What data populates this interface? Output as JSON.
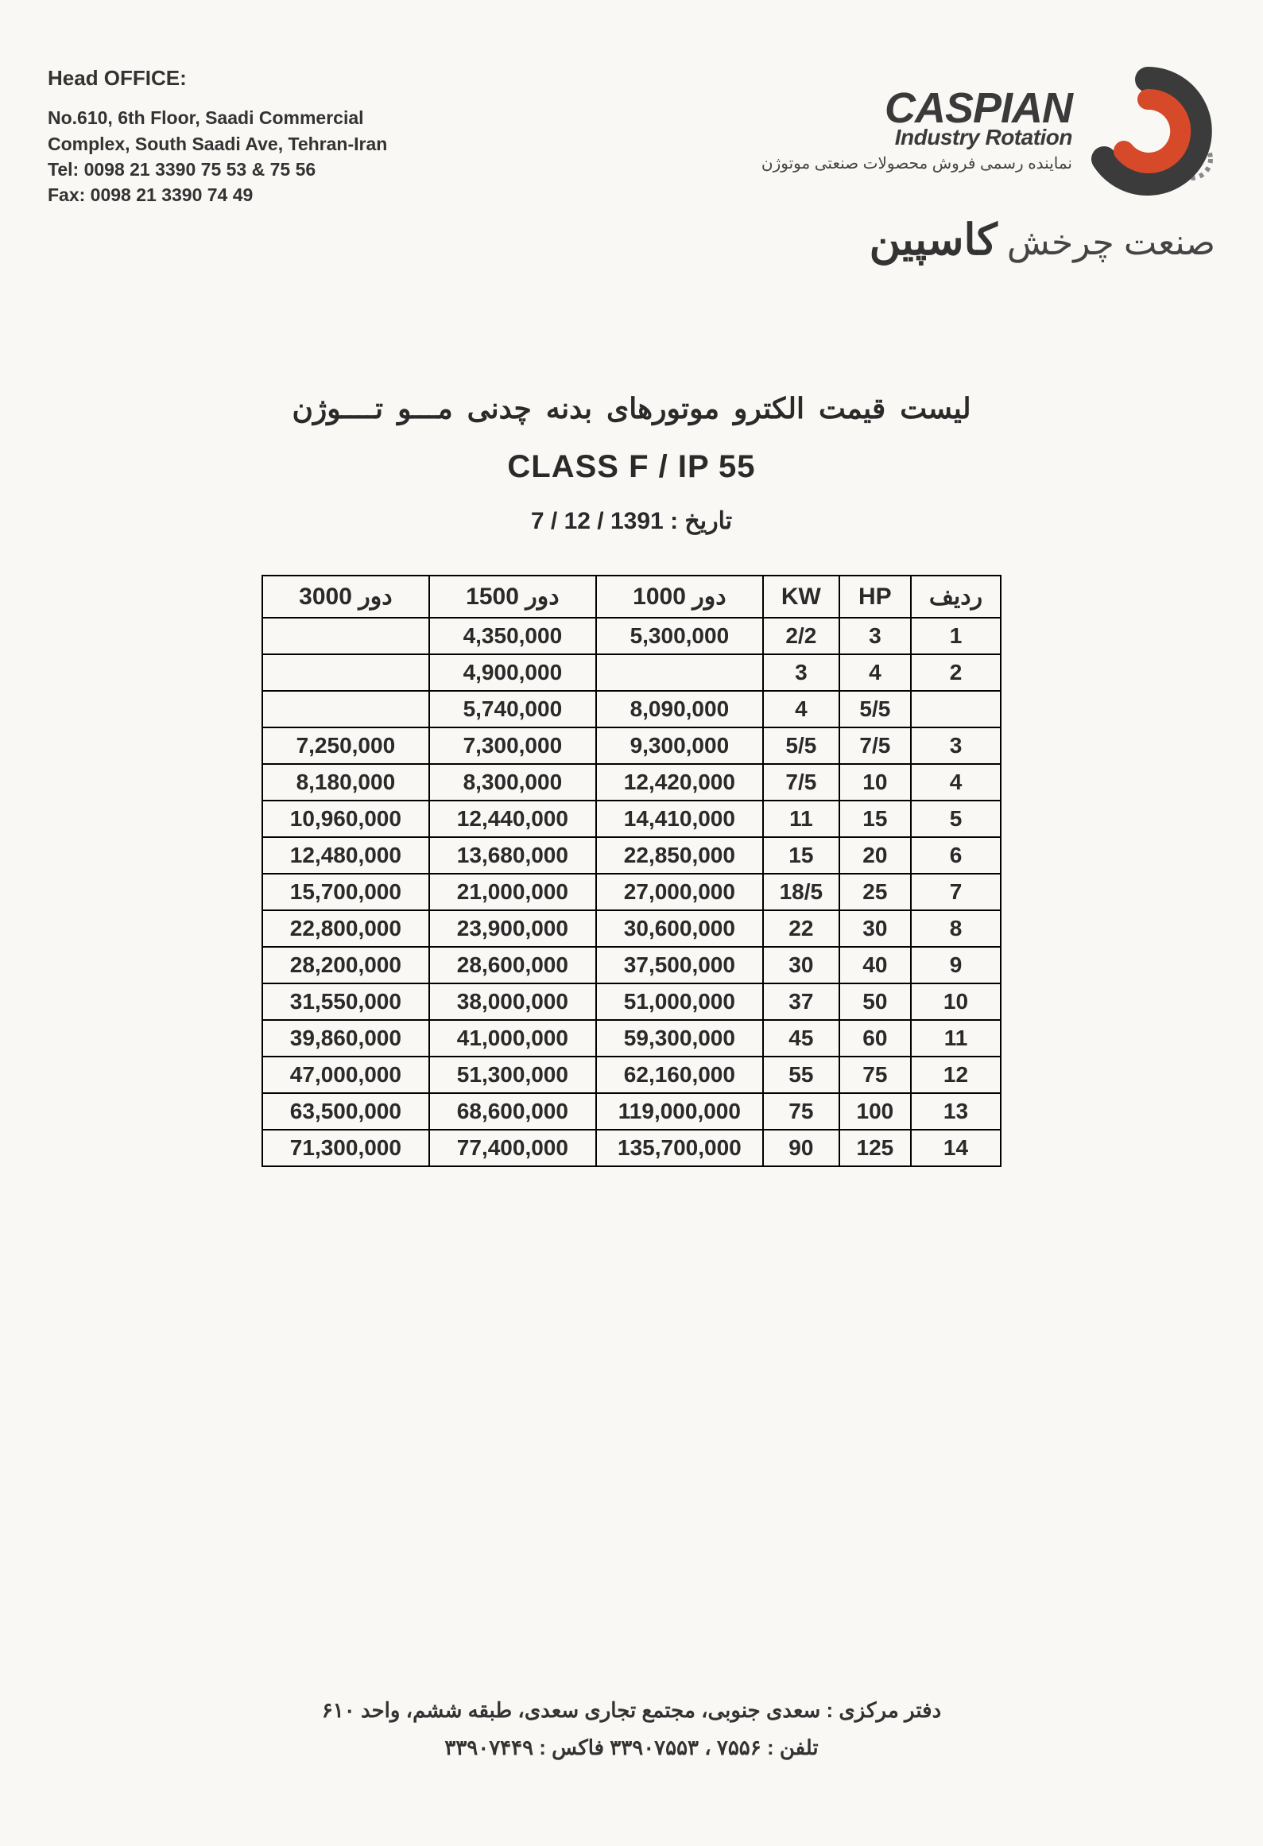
{
  "header": {
    "office_label": "Head OFFICE:",
    "address_line1": "No.610, 6th Floor, Saadi Commercial",
    "address_line2": "Complex, South Saadi Ave, Tehran-Iran",
    "tel": "Tel: 0098 21 3390 75 53 & 75 56",
    "fax": "Fax: 0098 21 3390 74 49"
  },
  "brand": {
    "name_en_main": "CASPIAN",
    "name_en_sub": "Industry Rotation",
    "tagline_fa": "نماینده رسمی فروش محصولات صنعتی موتوژن",
    "name_fa_bold": "کاسپین",
    "name_fa_light": "صنعت چرخش",
    "logo_colors": {
      "outer": "#3b3b3b",
      "inner": "#d64a2a",
      "gear": "#888888"
    }
  },
  "titles": {
    "fa_title": "لیست  قیمت  الکترو موتورهای  بدنه چدنی  مـــو تــــوژن",
    "class_line": "CLASS  F  /  IP 55",
    "date_label": "تاریخ :",
    "date_value": "1391 / 12 / 7"
  },
  "table": {
    "columns": [
      {
        "key": "rpm3000",
        "label": "3000 دور"
      },
      {
        "key": "rpm1500",
        "label": "1500 دور"
      },
      {
        "key": "rpm1000",
        "label": "1000 دور"
      },
      {
        "key": "kw",
        "label": "KW"
      },
      {
        "key": "hp",
        "label": "HP"
      },
      {
        "key": "row",
        "label": "ردیف"
      }
    ],
    "rows": [
      {
        "rpm3000": "",
        "rpm1500": "4,350,000",
        "rpm1000": "5,300,000",
        "kw": "2/2",
        "hp": "3",
        "row": "1"
      },
      {
        "rpm3000": "",
        "rpm1500": "4,900,000",
        "rpm1000": "",
        "kw": "3",
        "hp": "4",
        "row": "2"
      },
      {
        "rpm3000": "",
        "rpm1500": "5,740,000",
        "rpm1000": "8,090,000",
        "kw": "4",
        "hp": "5/5",
        "row": ""
      },
      {
        "rpm3000": "7,250,000",
        "rpm1500": "7,300,000",
        "rpm1000": "9,300,000",
        "kw": "5/5",
        "hp": "7/5",
        "row": "3"
      },
      {
        "rpm3000": "8,180,000",
        "rpm1500": "8,300,000",
        "rpm1000": "12,420,000",
        "kw": "7/5",
        "hp": "10",
        "row": "4"
      },
      {
        "rpm3000": "10,960,000",
        "rpm1500": "12,440,000",
        "rpm1000": "14,410,000",
        "kw": "11",
        "hp": "15",
        "row": "5"
      },
      {
        "rpm3000": "12,480,000",
        "rpm1500": "13,680,000",
        "rpm1000": "22,850,000",
        "kw": "15",
        "hp": "20",
        "row": "6"
      },
      {
        "rpm3000": "15,700,000",
        "rpm1500": "21,000,000",
        "rpm1000": "27,000,000",
        "kw": "18/5",
        "hp": "25",
        "row": "7"
      },
      {
        "rpm3000": "22,800,000",
        "rpm1500": "23,900,000",
        "rpm1000": "30,600,000",
        "kw": "22",
        "hp": "30",
        "row": "8"
      },
      {
        "rpm3000": "28,200,000",
        "rpm1500": "28,600,000",
        "rpm1000": "37,500,000",
        "kw": "30",
        "hp": "40",
        "row": "9"
      },
      {
        "rpm3000": "31,550,000",
        "rpm1500": "38,000,000",
        "rpm1000": "51,000,000",
        "kw": "37",
        "hp": "50",
        "row": "10"
      },
      {
        "rpm3000": "39,860,000",
        "rpm1500": "41,000,000",
        "rpm1000": "59,300,000",
        "kw": "45",
        "hp": "60",
        "row": "11"
      },
      {
        "rpm3000": "47,000,000",
        "rpm1500": "51,300,000",
        "rpm1000": "62,160,000",
        "kw": "55",
        "hp": "75",
        "row": "12"
      },
      {
        "rpm3000": "63,500,000",
        "rpm1500": "68,600,000",
        "rpm1000": "119,000,000",
        "kw": "75",
        "hp": "100",
        "row": "13"
      },
      {
        "rpm3000": "71,300,000",
        "rpm1500": "77,400,000",
        "rpm1000": "135,700,000",
        "kw": "90",
        "hp": "125",
        "row": "14"
      }
    ]
  },
  "footer": {
    "line1": "دفتر مرکزی : سعدی جنوبی، مجتمع تجاری سعدی، طبقه ششم، واحد ۶۱۰",
    "line2": "تلفن : ۷۵۵۶ ، ۳۳۹۰۷۵۵۳   فاکس : ۳۳۹۰۷۴۴۹"
  }
}
